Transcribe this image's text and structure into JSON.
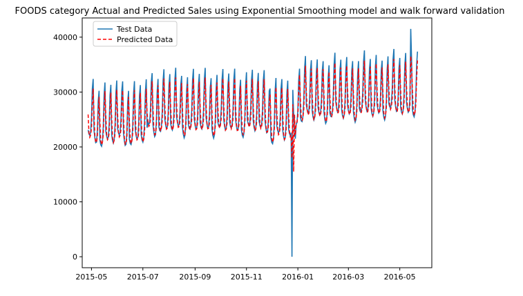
{
  "chart_data": {
    "type": "line",
    "title": "FOODS category Actual and Predicted Sales using Exponential Smoothing model and walk forward validation",
    "xlabel": "",
    "ylabel": "",
    "x_ticks": [
      "2015-05",
      "2015-07",
      "2015-09",
      "2015-11",
      "2016-01",
      "2016-03",
      "2016-05"
    ],
    "y_ticks": [
      0,
      10000,
      20000,
      30000,
      40000
    ],
    "xlim": [
      "2015-04-20",
      "2016-06-08"
    ],
    "ylim": [
      -2000,
      43500
    ],
    "grid": false,
    "legend_position": "top-left",
    "series_meta": [
      {
        "name": "Test Data",
        "color": "#1f77b4",
        "style": "solid"
      },
      {
        "name": "Predicted Data",
        "color": "#ff0000",
        "style": "dashed"
      }
    ],
    "x_start": "2015-04-27",
    "x_end": "2016-05-22",
    "weekly_pattern_actual": [
      24000,
      23000,
      22500,
      23000,
      25500,
      31000,
      33000
    ],
    "weekly_pattern_predicted": [
      25500,
      23500,
      22500,
      22800,
      24000,
      28500,
      31500
    ],
    "anomalies": [
      {
        "date": "2015-12-25",
        "actual": 0,
        "predicted": 18000
      },
      {
        "date": "2015-12-27",
        "actual": 26000,
        "predicted": 15500
      }
    ],
    "peaks": [
      {
        "date": "2016-05-14",
        "actual": 41500,
        "predicted": 36500
      }
    ]
  }
}
